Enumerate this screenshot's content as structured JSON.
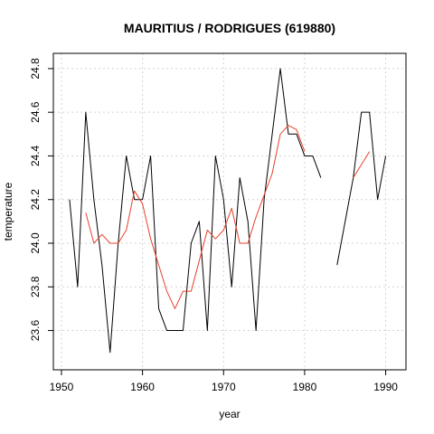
{
  "chart_data": {
    "type": "line",
    "title": "MAURITIUS / RODRIGUES (619880)",
    "xlabel": "year",
    "ylabel": "temperature",
    "xlim": [
      1949,
      1992.5
    ],
    "ylim": [
      23.42,
      24.87
    ],
    "xticks": [
      1950,
      1960,
      1970,
      1980,
      1990
    ],
    "yticks": [
      23.6,
      23.8,
      24.0,
      24.2,
      24.4,
      24.6,
      24.8
    ],
    "ytick_labels": [
      "23.6",
      "23.8",
      "24.0",
      "24.2",
      "24.4",
      "24.6",
      "24.8"
    ],
    "grid": true,
    "series": [
      {
        "color": "#000000",
        "points": [
          [
            1951,
            24.2
          ],
          [
            1952,
            23.8
          ],
          [
            1953,
            24.6
          ],
          [
            1954,
            24.2
          ],
          [
            1955,
            23.9
          ],
          [
            1956,
            23.5
          ],
          [
            1957,
            24.0
          ],
          [
            1958,
            24.4
          ],
          [
            1959,
            24.2
          ],
          [
            1960,
            24.2
          ],
          [
            1961,
            24.4
          ],
          [
            1962,
            23.7
          ],
          [
            1963,
            23.6
          ],
          [
            1964,
            23.6
          ],
          [
            1965,
            23.6
          ],
          [
            1966,
            24.0
          ],
          [
            1967,
            24.1
          ],
          [
            1968,
            23.6
          ],
          [
            1969,
            24.4
          ],
          [
            1970,
            24.2
          ],
          [
            1971,
            23.8
          ],
          [
            1972,
            24.3
          ],
          [
            1973,
            24.1
          ],
          [
            1974,
            23.6
          ],
          [
            1975,
            24.2
          ],
          [
            1976,
            24.5
          ],
          [
            1977,
            24.8
          ],
          [
            1978,
            24.5
          ],
          [
            1979,
            24.5
          ],
          [
            1980,
            24.4
          ],
          [
            1981,
            24.4
          ],
          [
            1982,
            24.3
          ],
          [
            1983,
            null
          ],
          [
            1984,
            23.9
          ],
          [
            1985,
            24.1
          ],
          [
            1986,
            24.3
          ],
          [
            1987,
            24.6
          ],
          [
            1988,
            24.6
          ],
          [
            1989,
            24.2
          ],
          [
            1990,
            24.4
          ]
        ]
      },
      {
        "color": "#e8402a",
        "points": [
          [
            1953,
            24.14
          ],
          [
            1954,
            24.0
          ],
          [
            1955,
            24.04
          ],
          [
            1956,
            24.0
          ],
          [
            1957,
            24.0
          ],
          [
            1958,
            24.06
          ],
          [
            1959,
            24.24
          ],
          [
            1960,
            24.18
          ],
          [
            1961,
            24.02
          ],
          [
            1962,
            23.9
          ],
          [
            1963,
            23.78
          ],
          [
            1964,
            23.7
          ],
          [
            1965,
            23.78
          ],
          [
            1966,
            23.78
          ],
          [
            1967,
            23.92
          ],
          [
            1968,
            24.06
          ],
          [
            1969,
            24.02
          ],
          [
            1970,
            24.06
          ],
          [
            1971,
            24.16
          ],
          [
            1972,
            24.0
          ],
          [
            1973,
            24.0
          ],
          [
            1974,
            24.12
          ],
          [
            1975,
            24.22
          ],
          [
            1976,
            24.32
          ],
          [
            1977,
            24.5
          ],
          [
            1978,
            24.54
          ],
          [
            1979,
            24.52
          ],
          [
            1980,
            24.42
          ],
          [
            1981,
            null
          ],
          [
            1982,
            null
          ],
          [
            1983,
            null
          ],
          [
            1984,
            null
          ],
          [
            1985,
            null
          ],
          [
            1986,
            24.3
          ],
          [
            1987,
            24.36
          ],
          [
            1988,
            24.42
          ]
        ]
      }
    ]
  }
}
